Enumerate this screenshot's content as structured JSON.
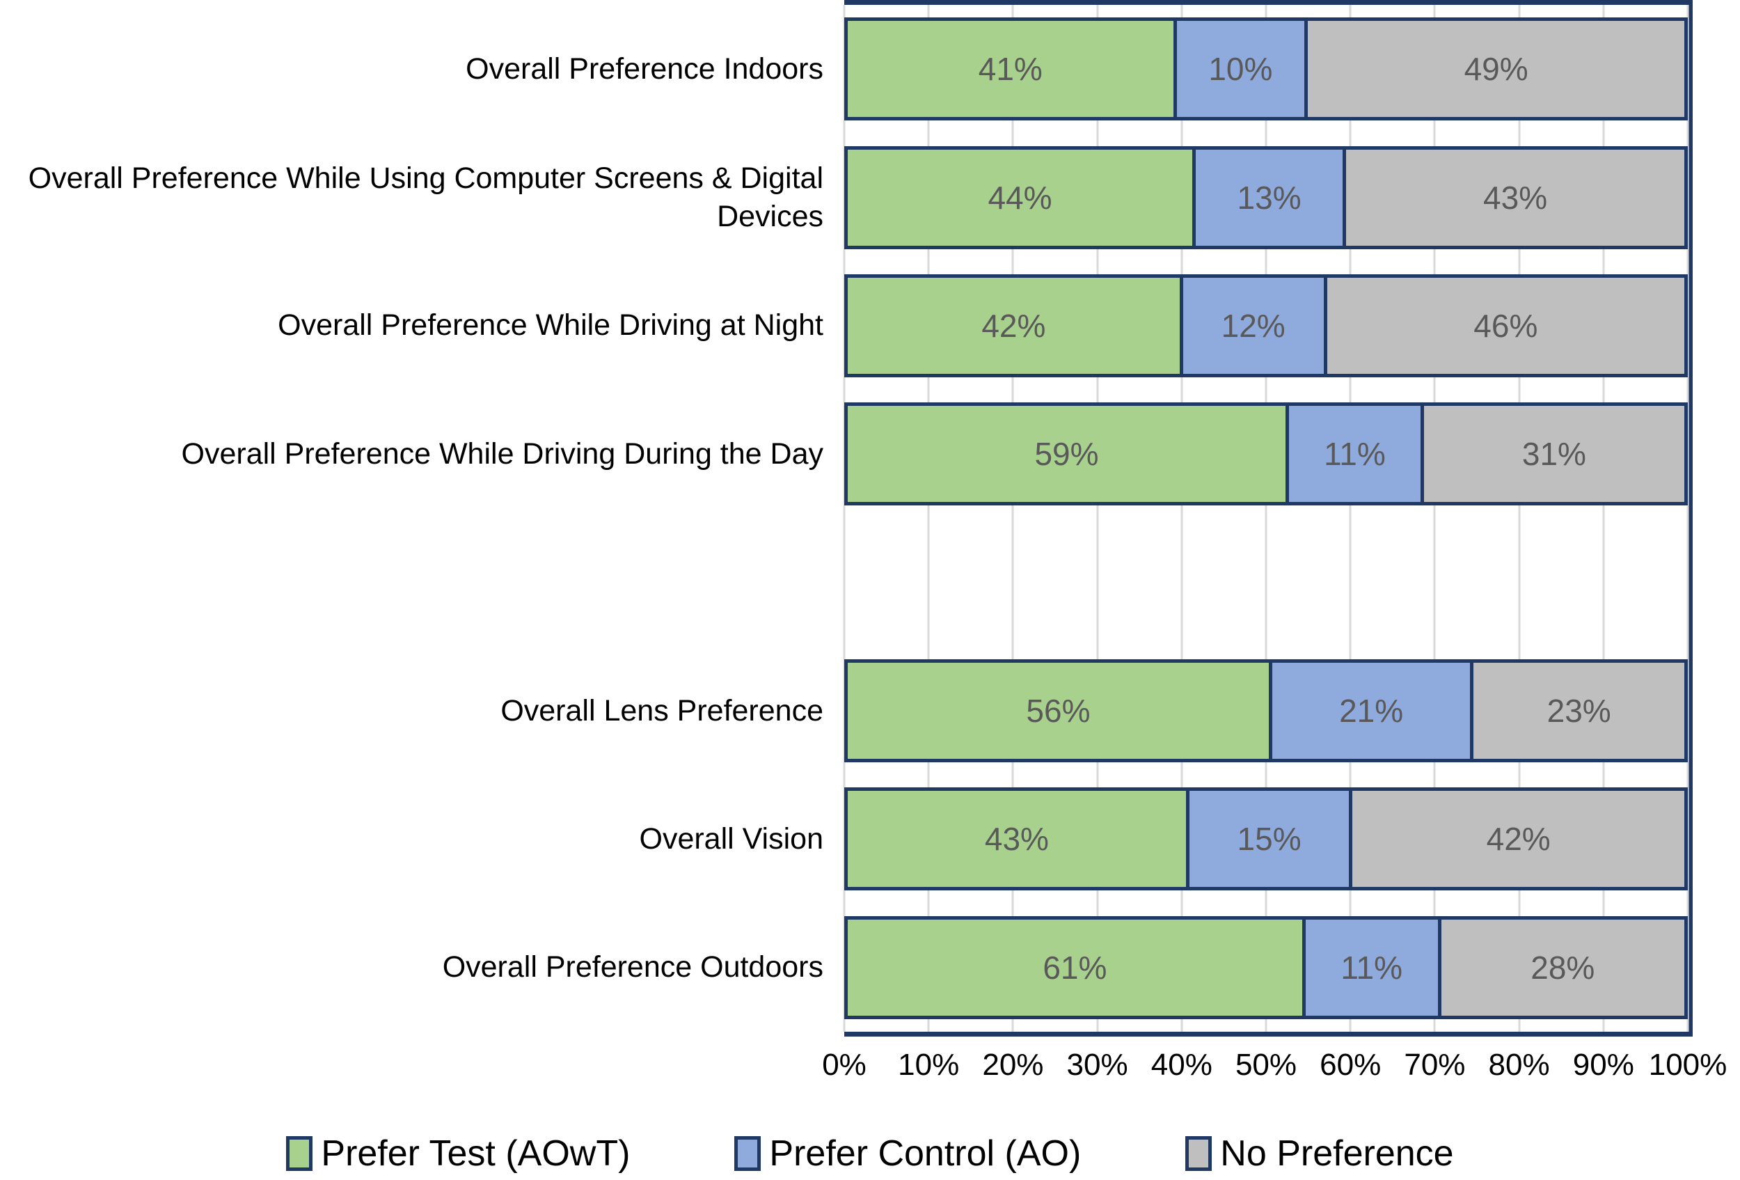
{
  "chart_data": {
    "type": "bar",
    "orientation": "horizontal",
    "stacked": true,
    "value_unit": "%",
    "xlim": [
      0,
      100
    ],
    "grid": true,
    "legend_position": "bottom",
    "categories": [
      "Overall Preference Indoors",
      "Overall Preference While Using Computer Screens & Digital Devices",
      "Overall Preference While Driving at Night",
      "Overall Preference While Driving During the Day",
      "",
      "Overall Lens Preference",
      "Overall Vision",
      "Overall Preference Outdoors"
    ],
    "series": [
      {
        "name": "Prefer Test (AOwT)",
        "color": "#A9D18E",
        "values": [
          41,
          44,
          42,
          59,
          null,
          56,
          43,
          61
        ]
      },
      {
        "name": "Prefer Control (AO)",
        "color": "#8FAADC",
        "values": [
          10,
          13,
          12,
          11,
          null,
          21,
          15,
          11
        ]
      },
      {
        "name": "No Preference",
        "color": "#BFBFBF",
        "values": [
          49,
          43,
          46,
          31,
          null,
          23,
          42,
          28
        ]
      }
    ],
    "series_colors": [
      "#A9D18E",
      "#8FAADC",
      "#BFBFBF"
    ],
    "series_ids": [
      "prefer-test",
      "prefer-control",
      "no-preference"
    ],
    "rows": [
      {
        "category": "Overall Preference Indoors",
        "values": [
          41,
          10,
          49
        ],
        "labels": [
          "41%",
          "10%",
          "49%"
        ]
      },
      {
        "category": "Overall Preference While Using Computer Screens & Digital Devices",
        "values": [
          44,
          13,
          43
        ],
        "labels": [
          "44%",
          "13%",
          "43%"
        ]
      },
      {
        "category": "Overall Preference While Driving at Night",
        "values": [
          42,
          12,
          46
        ],
        "labels": [
          "42%",
          "12%",
          "46%"
        ]
      },
      {
        "category": "Overall Preference While Driving During the Day",
        "values": [
          59,
          11,
          31
        ],
        "labels": [
          "59%",
          "11%",
          "31%"
        ]
      },
      {
        "category": "",
        "values": [],
        "labels": []
      },
      {
        "category": "Overall Lens Preference",
        "values": [
          56,
          21,
          23
        ],
        "labels": [
          "56%",
          "21%",
          "23%"
        ]
      },
      {
        "category": "Overall Vision",
        "values": [
          43,
          15,
          42
        ],
        "labels": [
          "43%",
          "15%",
          "42%"
        ]
      },
      {
        "category": "Overall Preference Outdoors",
        "values": [
          61,
          11,
          28
        ],
        "labels": [
          "61%",
          "11%",
          "28%"
        ]
      }
    ],
    "x_axis": {
      "ticks": [
        "0%",
        "10%",
        "20%",
        "30%",
        "40%",
        "50%",
        "60%",
        "70%",
        "80%",
        "90%",
        "100%"
      ]
    },
    "legend": [
      {
        "label": "Prefer Test (AOwT)",
        "color": "#A9D18E"
      },
      {
        "label": "Prefer Control (AO)",
        "color": "#8FAADC"
      },
      {
        "label": "No Preference",
        "color": "#BFBFBF"
      }
    ],
    "colors": {
      "segment_border": "#1F3864",
      "gridline": "#D9D9D9",
      "value_label": "#595959",
      "axis_text": "#000000"
    }
  }
}
